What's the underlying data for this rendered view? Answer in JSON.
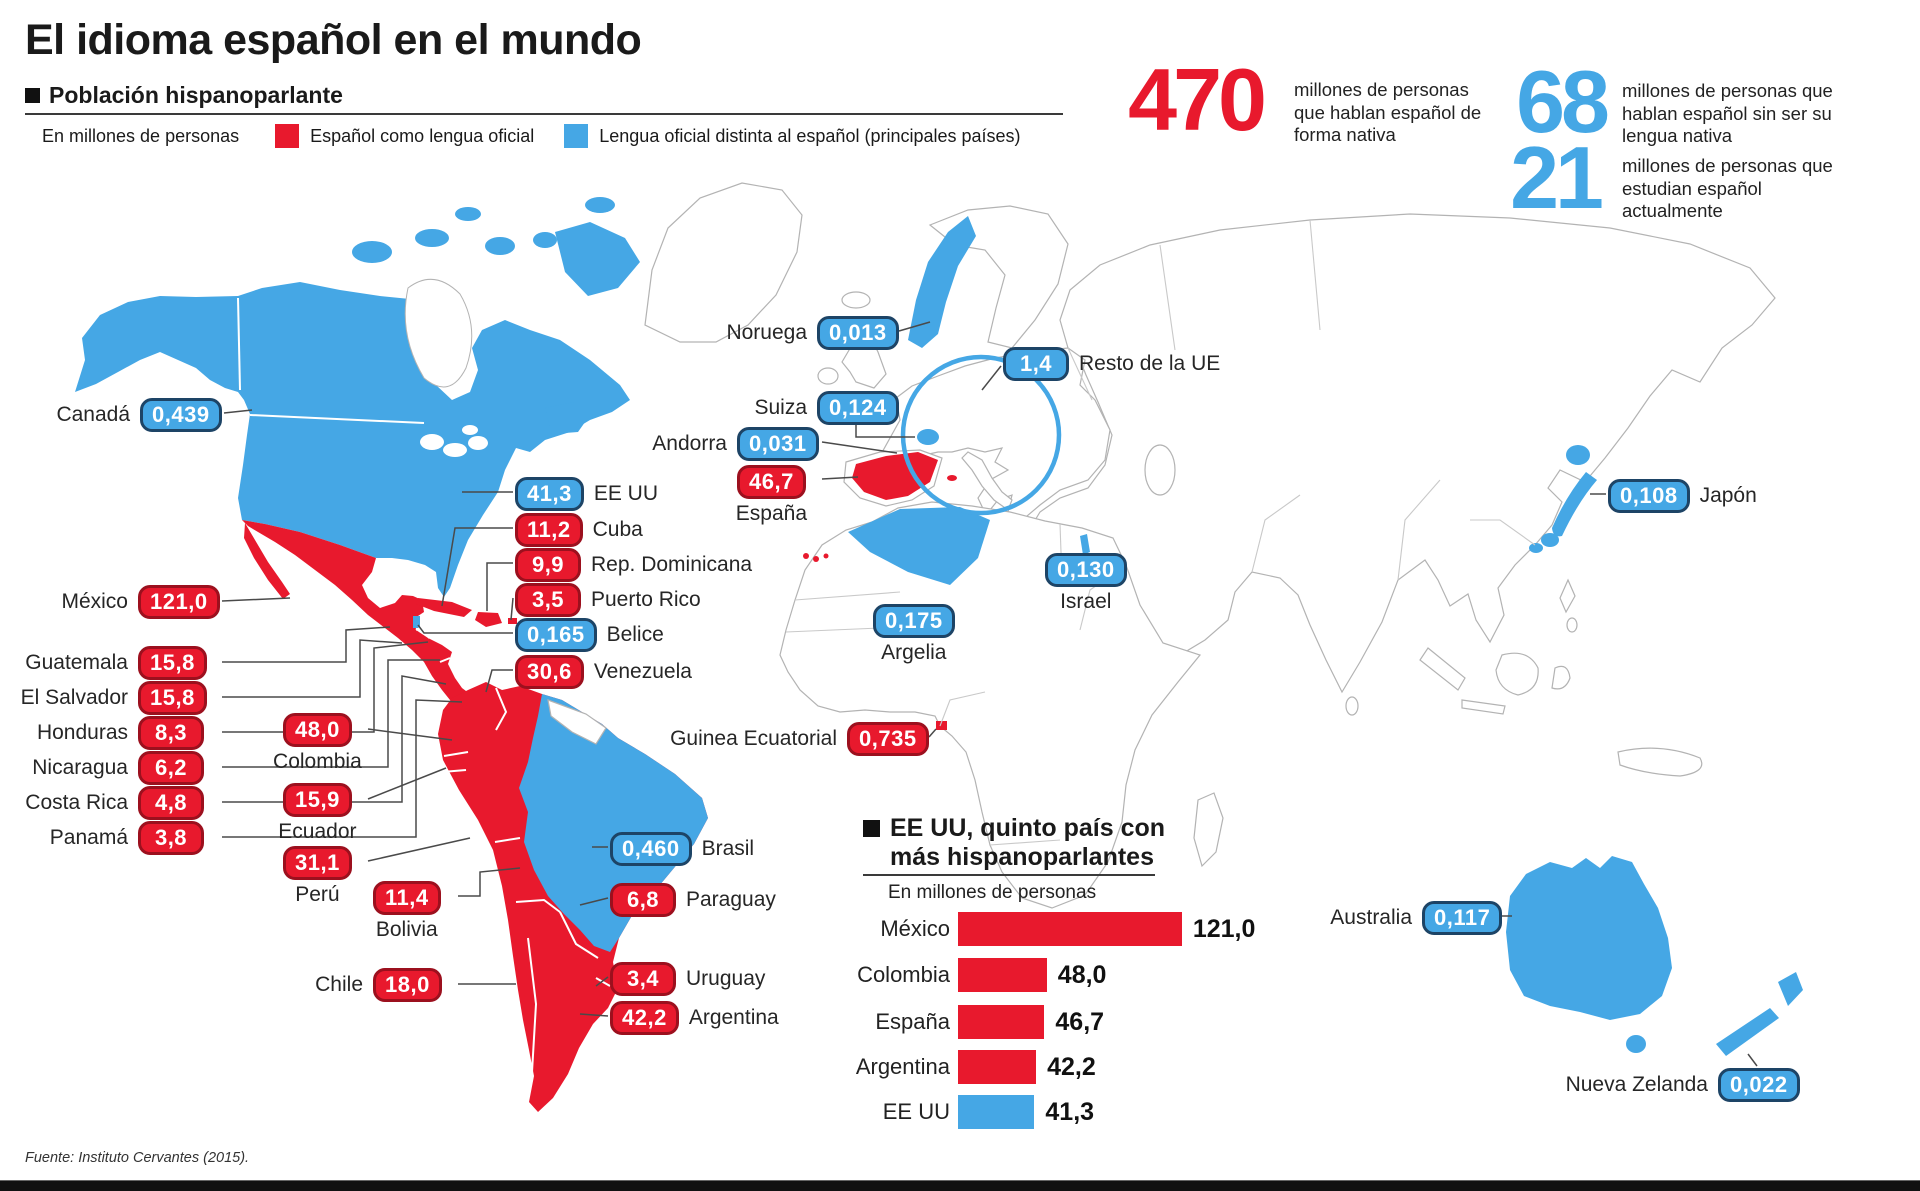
{
  "title": "El idioma español en el mundo",
  "subtitle": "Población hispanoparlante",
  "legend": {
    "unit": "En millones de personas",
    "official": "Español como lengua oficial",
    "non_official": "Lengua oficial distinta al español (principales países)"
  },
  "colors": {
    "official_red": "#e8192d",
    "non_official_blue": "#45a7e5"
  },
  "stats": {
    "native": {
      "value": "470",
      "text": "millones de personas que hablan español de forma nativa"
    },
    "non_native": {
      "value": "68",
      "text": "millones de personas que hablan español sin ser su lengua nativa"
    },
    "students": {
      "value": "21",
      "text": "millones de personas que estudian español actualmente"
    }
  },
  "map": {
    "labels": {
      "canada": {
        "name": "Canadá",
        "value": "0,439"
      },
      "mexico": {
        "name": "México",
        "value": "121,0"
      },
      "guatemala": {
        "name": "Guatemala",
        "value": "15,8"
      },
      "el_salvador": {
        "name": "El Salvador",
        "value": "15,8"
      },
      "honduras": {
        "name": "Honduras",
        "value": "8,3"
      },
      "nicaragua": {
        "name": "Nicaragua",
        "value": "6,2"
      },
      "costa_rica": {
        "name": "Costa Rica",
        "value": "4,8"
      },
      "panama": {
        "name": "Panamá",
        "value": "3,8"
      },
      "colombia": {
        "name": "Colombia",
        "value": "48,0"
      },
      "ecuador": {
        "name": "Ecuador",
        "value": "15,9"
      },
      "peru": {
        "name": "Perú",
        "value": "31,1"
      },
      "bolivia": {
        "name": "Bolivia",
        "value": "11,4"
      },
      "chile": {
        "name": "Chile",
        "value": "18,0"
      },
      "eeuu": {
        "name": "EE UU",
        "value": "41,3"
      },
      "cuba": {
        "name": "Cuba",
        "value": "11,2"
      },
      "rep_dominicana": {
        "name": "Rep. Dominicana",
        "value": "9,9"
      },
      "puerto_rico": {
        "name": "Puerto Rico",
        "value": "3,5"
      },
      "belice": {
        "name": "Belice",
        "value": "0,165"
      },
      "venezuela": {
        "name": "Venezuela",
        "value": "30,6"
      },
      "brasil": {
        "name": "Brasil",
        "value": "0,460"
      },
      "paraguay": {
        "name": "Paraguay",
        "value": "6,8"
      },
      "uruguay": {
        "name": "Uruguay",
        "value": "3,4"
      },
      "argentina": {
        "name": "Argentina",
        "value": "42,2"
      },
      "noruega": {
        "name": "Noruega",
        "value": "0,013"
      },
      "resto_ue": {
        "name": "Resto de la UE",
        "value": "1,4"
      },
      "suiza": {
        "name": "Suiza",
        "value": "0,124"
      },
      "andorra": {
        "name": "Andorra",
        "value": "0,031"
      },
      "espana": {
        "name": "España",
        "value": "46,7"
      },
      "argelia": {
        "name": "Argelia",
        "value": "0,175"
      },
      "israel": {
        "name": "Israel",
        "value": "0,130"
      },
      "guinea_ecuatorial": {
        "name": "Guinea Ecuatorial",
        "value": "0,735"
      },
      "japon": {
        "name": "Japón",
        "value": "0,108"
      },
      "australia": {
        "name": "Australia",
        "value": "0,117"
      },
      "nueva_zelanda": {
        "name": "Nueva Zelanda",
        "value": "0,022"
      }
    }
  },
  "chart": {
    "title_line1": "EE UU, quinto país con",
    "title_line2": "más hispanoparlantes",
    "unit": "En millones de personas"
  },
  "chart_data": {
    "type": "bar",
    "title": "EE UU, quinto país con más hispanoparlantes",
    "unit": "En millones de personas",
    "orientation": "horizontal",
    "categories": [
      "México",
      "Colombia",
      "España",
      "Argentina",
      "EE UU"
    ],
    "values": [
      121.0,
      48.0,
      46.7,
      42.2,
      41.3
    ],
    "rows": [
      {
        "label": "México",
        "value": 121.0,
        "display": "121,0",
        "color": "#e8192d"
      },
      {
        "label": "Colombia",
        "value": 48.0,
        "display": "48,0",
        "color": "#e8192d"
      },
      {
        "label": "España",
        "value": 46.7,
        "display": "46,7",
        "color": "#e8192d"
      },
      {
        "label": "Argentina",
        "value": 42.2,
        "display": "42,2",
        "color": "#e8192d"
      },
      {
        "label": "EE UU",
        "value": 41.3,
        "display": "41,3",
        "color": "#45a7e5"
      }
    ]
  },
  "source": "Fuente: Instituto Cervantes (2015)."
}
